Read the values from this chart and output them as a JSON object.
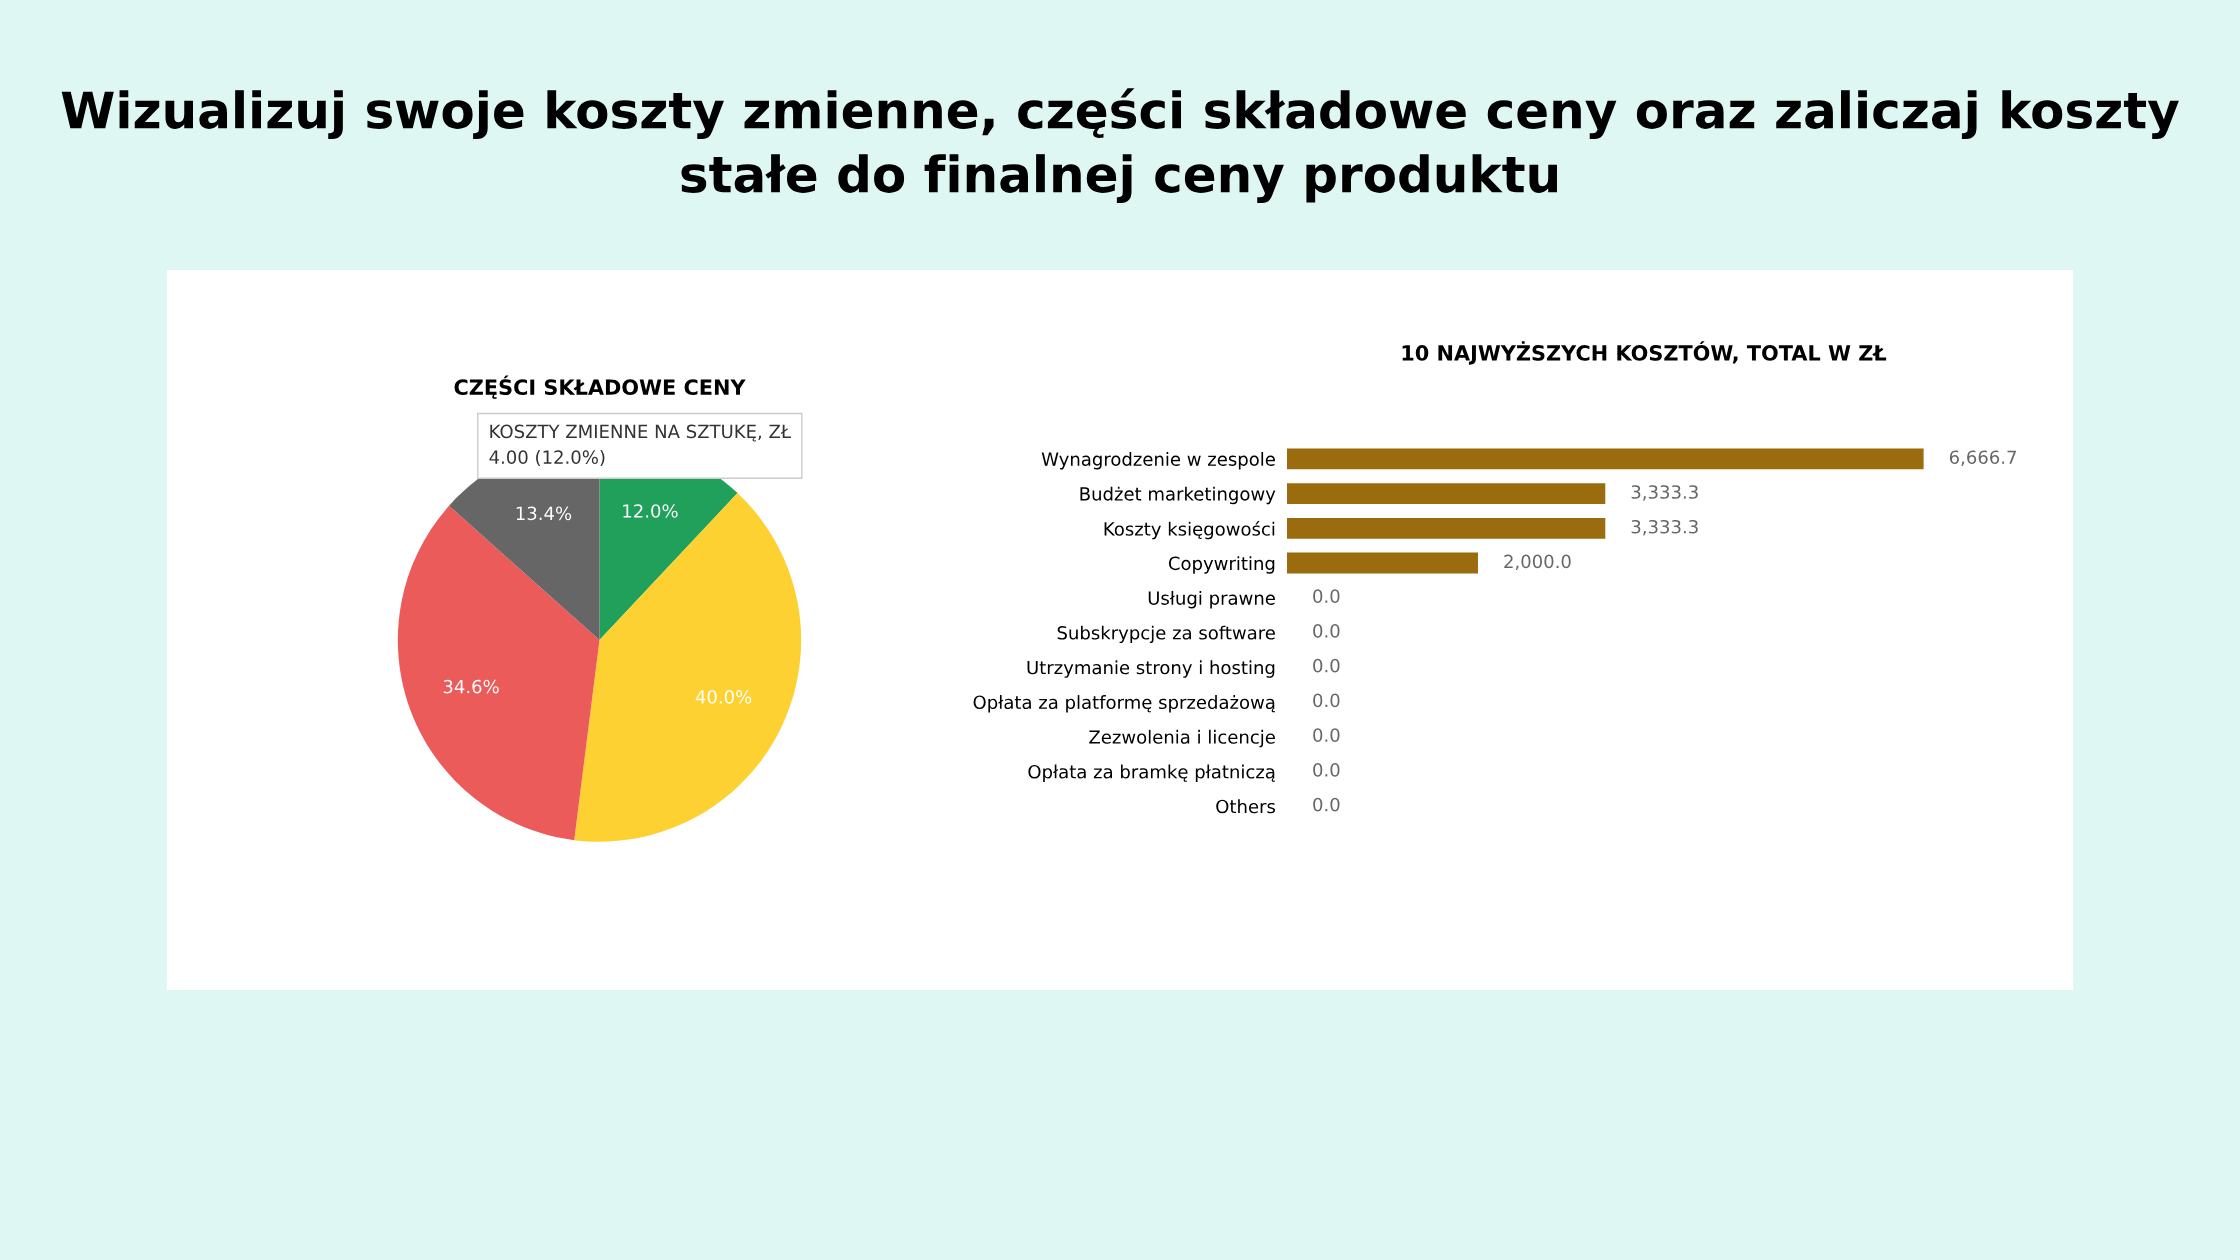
{
  "chart_data": [
    {
      "type": "pie",
      "title": "CZĘŚCI SKŁADOWE CENY",
      "subtitle": "Wizualizuj swoje koszty zmienne, części składowe ceny oraz zaliczaj koszty stałe do finalnej ceny produktu",
      "categories": [
        null,
        null,
        null,
        null
      ],
      "values": [
        12.0,
        40.0,
        34.6,
        13.4
      ],
      "value_labels": [
        "12.0%",
        "40.0%",
        "34.6%",
        "13.4%"
      ],
      "colors": [
        "#20a05a",
        "#fed132",
        "#ea5b5a",
        "#666666"
      ],
      "annotations": [
        "KOSZTY ZMIENNE NA SZTUKĘ, ZŁ",
        "4.00 (12.0%)"
      ],
      "legend": false
    },
    {
      "type": "bar",
      "orientation": "horizontal",
      "title": "10 NAJWYŻSZYCH KOSZTÓW, TOTAL W ZŁ",
      "categories": [
        "Wynagrodzenie w zespole",
        "Budżet marketingowy",
        "Koszty księgowości",
        "Copywriting",
        "Usługi prawne",
        "Subskrypcje za software",
        "Utrzymanie strony i hosting",
        "Opłata za platformę sprzedażową",
        "Zezwolenia i licencje",
        "Opłata za bramkę płatniczą",
        "Others"
      ],
      "values": [
        6666.7,
        3333.3,
        3333.3,
        2000.0,
        0.0,
        0.0,
        0.0,
        0.0,
        0.0,
        0.0,
        0.0
      ],
      "value_labels": [
        "6,666.7",
        "3,333.3",
        "3,333.3",
        "2,000.0",
        "0.0",
        "0.0",
        "0.0",
        "0.0",
        "0.0",
        "0.0",
        "0.0"
      ],
      "color": "#9a6c0d",
      "tick_labels": "y"
    }
  ]
}
